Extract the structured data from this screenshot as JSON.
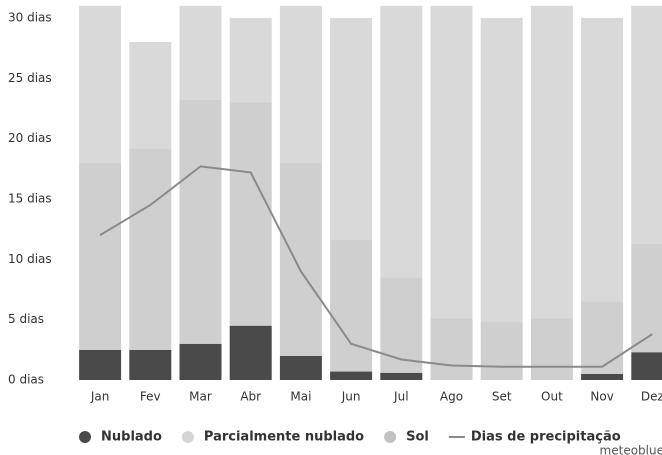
{
  "chart_data": {
    "type": "bar",
    "stacked": true,
    "categories": [
      "Jan",
      "Fev",
      "Mar",
      "Abr",
      "Mai",
      "Jun",
      "Jul",
      "Ago",
      "Set",
      "Out",
      "Nov",
      "Dez"
    ],
    "series": [
      {
        "name": "Nublado",
        "color": "#4a4a4a",
        "values": [
          2.5,
          2.5,
          3,
          4.5,
          2,
          0.7,
          0.6,
          0,
          0,
          0,
          0.5,
          2.3
        ]
      },
      {
        "name": "Parcialmente nublado",
        "color": "#cfcfcf",
        "values": [
          15.5,
          16.7,
          20.2,
          18.5,
          16,
          10.9,
          7.9,
          5.1,
          4.8,
          5.1,
          6,
          9
        ]
      },
      {
        "name": "Sol",
        "color": "#d9d9d9",
        "values": [
          13,
          8.8,
          7.8,
          7,
          13,
          18.4,
          22.5,
          25.9,
          25.2,
          25.9,
          23.5,
          19.7
        ]
      },
      {
        "name": "Dias de precipitação",
        "type": "line",
        "color": "#8a8a8a",
        "values": [
          12,
          14.5,
          17.7,
          17.2,
          9,
          3,
          1.7,
          1.2,
          1.1,
          1.1,
          1.1,
          3.8
        ]
      }
    ],
    "ylim": [
      0,
      31
    ],
    "yticks": [
      {
        "value": 0,
        "label": "0 dias"
      },
      {
        "value": 5,
        "label": "5 dias"
      },
      {
        "value": 10,
        "label": "10 dias"
      },
      {
        "value": 15,
        "label": "15 dias"
      },
      {
        "value": 20,
        "label": "20 dias"
      },
      {
        "value": 25,
        "label": "25 dias"
      },
      {
        "value": 30,
        "label": "30 dias"
      }
    ],
    "legend": "bottom",
    "credit": "meteoblue"
  }
}
